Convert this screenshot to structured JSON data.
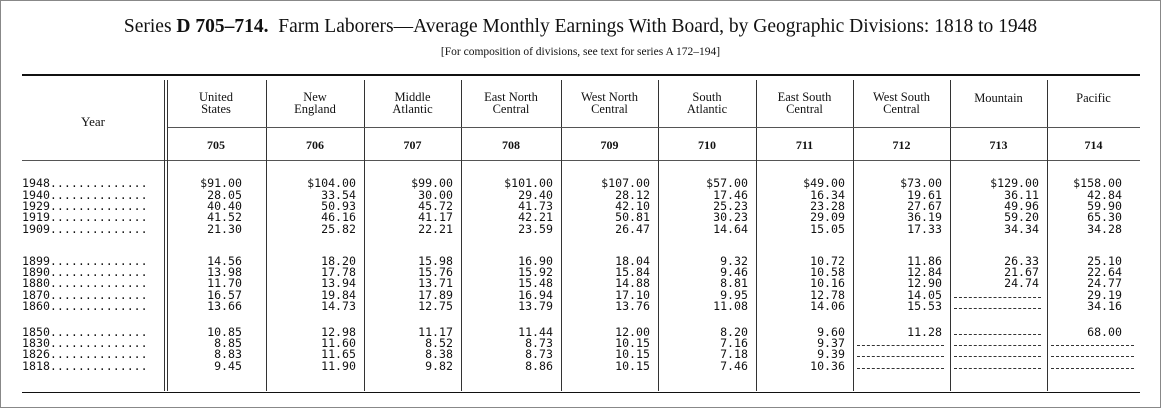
{
  "title": {
    "series_label": "Series",
    "series_code": "D 705–714.",
    "text": "Farm Laborers—Average Monthly Earnings With Board, by Geographic Divisions: 1818 to 1948"
  },
  "subtitle": "[For composition of divisions, see text for series A 172–194]",
  "year_header": "Year",
  "columns": [
    {
      "line1": "United",
      "line2": "States",
      "num": "705"
    },
    {
      "line1": "New",
      "line2": "England",
      "num": "706"
    },
    {
      "line1": "Middle",
      "line2": "Atlantic",
      "num": "707"
    },
    {
      "line1": "East North",
      "line2": "Central",
      "num": "708"
    },
    {
      "line1": "West North",
      "line2": "Central",
      "num": "709"
    },
    {
      "line1": "South",
      "line2": "Atlantic",
      "num": "710"
    },
    {
      "line1": "East South",
      "line2": "Central",
      "num": "711"
    },
    {
      "line1": "West South",
      "line2": "Central",
      "num": "712"
    },
    {
      "line1": "Mountain",
      "line2": "",
      "num": "713"
    },
    {
      "line1": "Pacific",
      "line2": "",
      "num": "714"
    }
  ],
  "leader": "..............",
  "rows": [
    {
      "year": "1948",
      "values": [
        "$91.00",
        "$104.00",
        "$99.00",
        "$101.00",
        "$107.00",
        "$57.00",
        "$49.00",
        "$73.00",
        "$129.00",
        "$158.00"
      ]
    },
    {
      "year": "1940",
      "values": [
        "28.05",
        "33.54",
        "30.00",
        "29.40",
        "28.12",
        "17.46",
        "16.34",
        "19.61",
        "36.11",
        "42.84"
      ]
    },
    {
      "year": "1929",
      "values": [
        "40.40",
        "50.93",
        "45.72",
        "41.73",
        "42.10",
        "25.23",
        "23.28",
        "27.67",
        "49.96",
        "59.90"
      ]
    },
    {
      "year": "1919",
      "values": [
        "41.52",
        "46.16",
        "41.17",
        "42.21",
        "50.81",
        "30.23",
        "29.09",
        "36.19",
        "59.20",
        "65.30"
      ]
    },
    {
      "year": "1909",
      "values": [
        "21.30",
        "25.82",
        "22.21",
        "23.59",
        "26.47",
        "14.64",
        "15.05",
        "17.33",
        "34.34",
        "34.28"
      ]
    },
    {
      "year": "1899",
      "values": [
        "14.56",
        "18.20",
        "15.98",
        "16.90",
        "18.04",
        "9.32",
        "10.72",
        "11.86",
        "26.33",
        "25.10"
      ]
    },
    {
      "year": "1890",
      "values": [
        "13.98",
        "17.78",
        "15.76",
        "15.92",
        "15.84",
        "9.46",
        "10.58",
        "12.84",
        "21.67",
        "22.64"
      ]
    },
    {
      "year": "1880",
      "values": [
        "11.70",
        "13.94",
        "13.71",
        "15.48",
        "14.88",
        "8.81",
        "10.16",
        "12.90",
        "24.74",
        "24.77"
      ]
    },
    {
      "year": "1870",
      "values": [
        "16.57",
        "19.84",
        "17.89",
        "16.94",
        "17.10",
        "9.95",
        "12.78",
        "14.05",
        null,
        "29.19"
      ]
    },
    {
      "year": "1860",
      "values": [
        "13.66",
        "14.73",
        "12.75",
        "13.79",
        "13.76",
        "11.08",
        "14.06",
        "15.53",
        null,
        "34.16"
      ]
    },
    {
      "year": "1850",
      "values": [
        "10.85",
        "12.98",
        "11.17",
        "11.44",
        "12.00",
        "8.20",
        "9.60",
        "11.28",
        null,
        "68.00"
      ]
    },
    {
      "year": "1830",
      "values": [
        "8.85",
        "11.60",
        "8.52",
        "8.73",
        "10.15",
        "7.16",
        "9.37",
        null,
        null,
        null
      ]
    },
    {
      "year": "1826",
      "values": [
        "8.83",
        "11.65",
        "8.38",
        "8.73",
        "10.15",
        "7.18",
        "9.39",
        null,
        null,
        null
      ]
    },
    {
      "year": "1818",
      "values": [
        "9.45",
        "11.90",
        "9.82",
        "8.86",
        "10.15",
        "7.46",
        "10.36",
        null,
        null,
        null
      ]
    }
  ]
}
